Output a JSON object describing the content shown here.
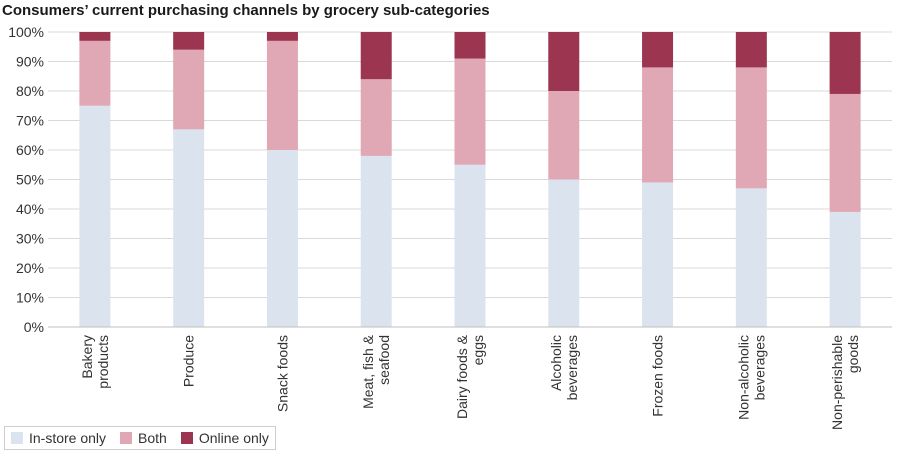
{
  "chart_data": {
    "type": "bar",
    "stacked": true,
    "title": "Consumers’ current purchasing channels by grocery sub-categories",
    "xlabel": "",
    "ylabel": "",
    "ylim": [
      0,
      100
    ],
    "yticks": [
      "0%",
      "10%",
      "20%",
      "30%",
      "40%",
      "50%",
      "60%",
      "70%",
      "80%",
      "90%",
      "100%"
    ],
    "grid": true,
    "legend_position": "bottom-left",
    "categories": [
      [
        "Bakery",
        "products"
      ],
      [
        "Produce"
      ],
      [
        "Snack foods"
      ],
      [
        "Meat, fish &",
        "seafood"
      ],
      [
        "Dairy foods &",
        "eggs"
      ],
      [
        "Alcoholic",
        "beverages"
      ],
      [
        "Frozen foods"
      ],
      [
        "Non-alcoholic",
        "beverages"
      ],
      [
        "Non-perishable",
        "goods"
      ]
    ],
    "series": [
      {
        "name": "In-store only",
        "color": "#dbe4ee",
        "values": [
          75,
          67,
          60,
          58,
          55,
          50,
          49,
          47,
          39
        ]
      },
      {
        "name": "Both",
        "color": "#e0a8b4",
        "values": [
          22,
          27,
          37,
          26,
          36,
          30,
          39,
          41,
          40
        ]
      },
      {
        "name": "Online only",
        "color": "#9b3550",
        "values": [
          3,
          6,
          3,
          16,
          9,
          20,
          12,
          12,
          21
        ]
      }
    ]
  }
}
